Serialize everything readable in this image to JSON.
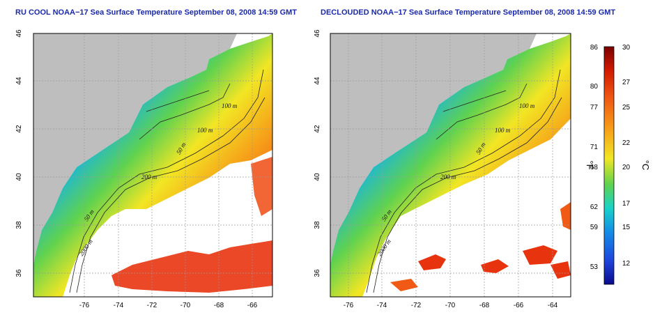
{
  "titles": {
    "left": "RU COOL NOAA−17 Sea Surface Temperature September 08, 2008 14:59 GMT",
    "right": "DECLOUDED NOAA−17 Sea Surface Temperature September 08, 2008 14:59 GMT"
  },
  "axes": {
    "x_ticks": [
      "-76",
      "-74",
      "-72",
      "-70",
      "-68",
      "-66",
      "-64"
    ],
    "y_ticks": [
      "46",
      "44",
      "42",
      "40",
      "38",
      "36"
    ]
  },
  "contour_labels": [
    "100 m",
    "100 m",
    "50 m",
    "200 m",
    "50 m",
    "2000 m"
  ],
  "colorbar": {
    "fahrenheit_unit": "°F",
    "celsius_unit": "°C",
    "fahrenheit_ticks": [
      "86",
      "80",
      "77",
      "71",
      "68",
      "62",
      "59",
      "53"
    ],
    "celsius_ticks": [
      "30",
      "27",
      "25",
      "22",
      "20",
      "17",
      "15",
      "12"
    ],
    "range_c": [
      10,
      30
    ],
    "stops": [
      "#7a0000",
      "#d21a00",
      "#f05a14",
      "#f6a019",
      "#f2e624",
      "#5fd24f",
      "#19d2c8",
      "#148ce6",
      "#1e46dc",
      "#0a0a8c"
    ]
  },
  "colors": {
    "land": "#bebebe",
    "cloud_nodata": "#ffffff",
    "title": "#1a2aa8"
  }
}
